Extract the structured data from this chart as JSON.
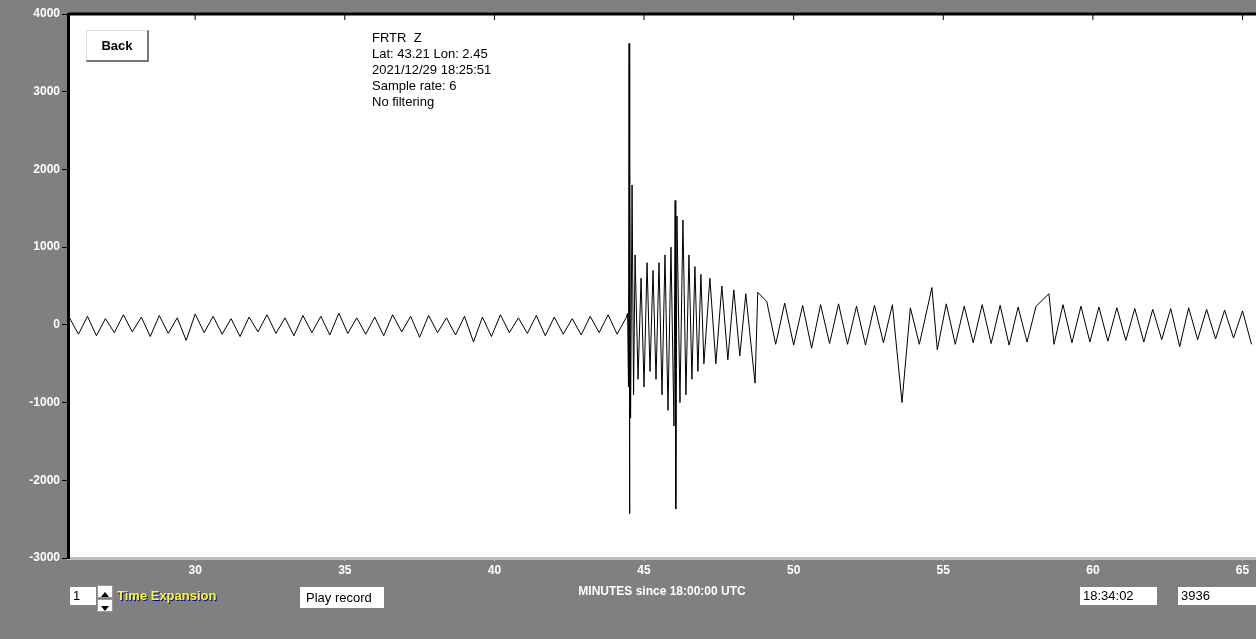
{
  "chart_data": {
    "type": "line",
    "xlabel": "MINUTES since 18:00:00 UTC",
    "annotations": [
      "FRTR  Z",
      "Lat: 43.21 Lon: 2.45",
      "2021/12/29 18:25:51",
      "Sample rate: 6",
      "No filtering",
      "Back",
      "1",
      "Time Expansion",
      "Play record",
      "18:34:02",
      "3936"
    ],
    "xlim": [
      25.75,
      65.45
    ],
    "xticks": [
      30,
      35,
      40,
      45,
      50,
      55,
      60,
      65
    ],
    "ylim": [
      -3000,
      4000
    ],
    "yticks": [
      -3000,
      -2000,
      -1000,
      0,
      1000,
      2000,
      3000,
      4000
    ],
    "series": [
      {
        "color": "#000000",
        "x": [
          25.8,
          26.1,
          26.4,
          26.7,
          27.0,
          27.3,
          27.6,
          27.9,
          28.2,
          28.5,
          28.8,
          29.1,
          29.4,
          29.7,
          30.0,
          30.3,
          30.6,
          30.9,
          31.2,
          31.5,
          31.8,
          32.1,
          32.4,
          32.7,
          33.0,
          33.3,
          33.6,
          33.9,
          34.2,
          34.5,
          34.8,
          35.1,
          35.4,
          35.7,
          36.0,
          36.3,
          36.6,
          36.9,
          37.2,
          37.5,
          37.8,
          38.1,
          38.4,
          38.7,
          39.0,
          39.3,
          39.6,
          39.9,
          40.2,
          40.5,
          40.8,
          41.1,
          41.4,
          41.7,
          42.0,
          42.3,
          42.6,
          42.9,
          43.2,
          43.5,
          43.8,
          44.1,
          44.4,
          44.45,
          44.48,
          44.5,
          44.51,
          44.53,
          44.55,
          44.6,
          44.65,
          44.7,
          44.8,
          44.9,
          45.0,
          45.1,
          45.2,
          45.3,
          45.4,
          45.5,
          45.6,
          45.7,
          45.8,
          45.9,
          46.0,
          46.04,
          46.06,
          46.1,
          46.2,
          46.3,
          46.4,
          46.5,
          46.6,
          46.7,
          46.8,
          46.9,
          47.0,
          47.2,
          47.4,
          47.6,
          47.8,
          48.0,
          48.2,
          48.4,
          48.6,
          48.71,
          48.8,
          49.1,
          49.4,
          49.7,
          50.0,
          50.3,
          50.6,
          50.9,
          51.2,
          51.5,
          51.8,
          52.1,
          52.4,
          52.7,
          53.0,
          53.3,
          53.62,
          53.9,
          54.2,
          54.62,
          54.8,
          55.1,
          55.4,
          55.7,
          56.0,
          56.3,
          56.6,
          56.9,
          57.2,
          57.5,
          57.8,
          58.1,
          58.53,
          58.7,
          59.0,
          59.3,
          59.6,
          59.9,
          60.2,
          60.5,
          60.8,
          61.1,
          61.4,
          61.7,
          62.0,
          62.3,
          62.6,
          62.9,
          63.2,
          63.5,
          63.8,
          64.1,
          64.4,
          64.7,
          65.0,
          65.3
        ],
        "values": [
          90,
          -120,
          110,
          -140,
          80,
          -100,
          130,
          -90,
          100,
          -150,
          120,
          -110,
          90,
          -200,
          140,
          -100,
          110,
          -120,
          80,
          -150,
          100,
          -90,
          130,
          -110,
          90,
          -140,
          120,
          -100,
          110,
          -130,
          150,
          -110,
          90,
          -120,
          100,
          -140,
          130,
          -90,
          110,
          -160,
          120,
          -100,
          90,
          -130,
          110,
          -220,
          100,
          -150,
          130,
          -100,
          90,
          -110,
          120,
          -140,
          100,
          -120,
          80,
          -130,
          110,
          -100,
          130,
          -120,
          90,
          150,
          -800,
          3620,
          -2430,
          2250,
          -1200,
          1800,
          -900,
          900,
          -700,
          600,
          -800,
          800,
          -600,
          700,
          -700,
          800,
          -900,
          900,
          -1100,
          1000,
          -1300,
          1600,
          -2370,
          1400,
          -1000,
          1350,
          -900,
          900,
          -700,
          750,
          -600,
          650,
          -500,
          600,
          -500,
          500,
          -450,
          450,
          -400,
          400,
          -350,
          -750,
          420,
          300,
          -250,
          280,
          -260,
          250,
          -300,
          260,
          -240,
          270,
          -250,
          240,
          -260,
          250,
          -230,
          260,
          -1000,
          220,
          -250,
          480,
          -320,
          270,
          -250,
          240,
          -230,
          260,
          -240,
          250,
          -260,
          230,
          -220,
          240,
          400,
          -250,
          260,
          -230,
          240,
          -220,
          230,
          -210,
          220,
          -200,
          210,
          -220,
          200,
          -190,
          210,
          -280,
          220,
          -190,
          200,
          -180,
          190,
          -170,
          180,
          -250
        ]
      }
    ]
  }
}
